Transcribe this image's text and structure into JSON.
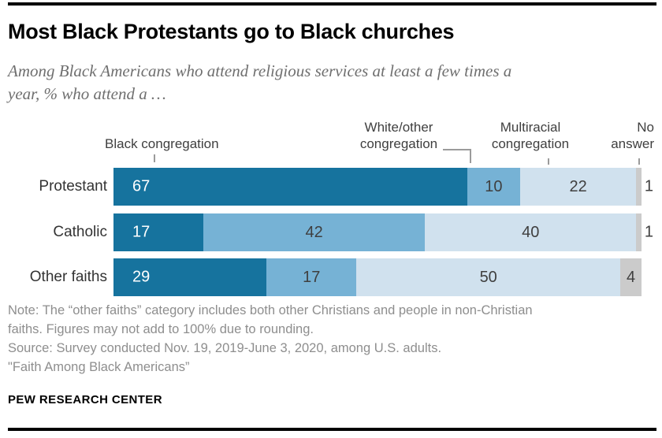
{
  "title": "Most Black Protestants go to Black churches",
  "subtitle_lines": [
    "Among Black Americans who attend religious services at least a few times a",
    "year, % who attend a …"
  ],
  "legend": {
    "items": [
      {
        "label": "Black congregation"
      },
      {
        "label": "White/other congregation"
      },
      {
        "label": "Multiracial congregation"
      },
      {
        "label": "No answer"
      }
    ]
  },
  "chart_data": {
    "type": "bar",
    "stacked": true,
    "orientation": "horizontal",
    "unit": "%",
    "xlim": [
      0,
      100
    ],
    "categories": [
      "Protestant",
      "Catholic",
      "Other faiths"
    ],
    "series": [
      {
        "name": "Black congregation",
        "color": "#16739e",
        "values": [
          67,
          17,
          29
        ]
      },
      {
        "name": "White/other congregation",
        "color": "#76b2d5",
        "values": [
          10,
          42,
          17
        ]
      },
      {
        "name": "Multiracial congregation",
        "color": "#d0e1ee",
        "values": [
          22,
          40,
          50
        ]
      },
      {
        "name": "No answer",
        "color": "#cbcbcb",
        "values": [
          1,
          1,
          4
        ]
      }
    ]
  },
  "footer": {
    "note_lines": [
      "Note: The “other faiths” category includes both other Christians and people in non-Christian",
      "faiths. Figures may not add to 100% due to rounding."
    ],
    "source": "Source: Survey conducted Nov. 19, 2019-June 3, 2020, among U.S. adults.",
    "report": "\"Faith Among Black Americans”",
    "brand": "PEW RESEARCH CENTER"
  }
}
